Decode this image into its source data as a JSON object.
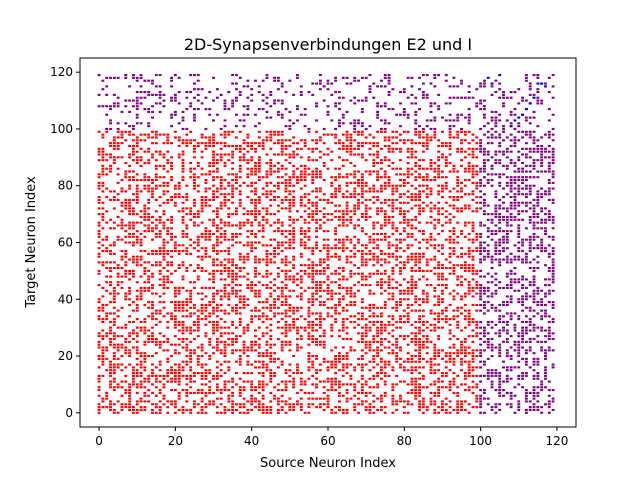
{
  "chart_data": {
    "type": "scatter",
    "title": "2D-Synapsenverbindungen E2 und I",
    "xlabel": "Source Neuron Index",
    "ylabel": "Target Neuron Index",
    "xlim": [
      -5,
      125
    ],
    "ylim": [
      -5,
      125
    ],
    "xticks": [
      0,
      20,
      40,
      60,
      80,
      100,
      120
    ],
    "yticks": [
      0,
      20,
      40,
      60,
      80,
      100,
      120
    ],
    "grid": false,
    "legend": "none",
    "marker_size_units": 1,
    "series": [
      {
        "color": "#ff0000",
        "region": {
          "x": [
            0,
            99
          ],
          "y": [
            0,
            99
          ]
        },
        "density": 0.45,
        "seed": 11
      },
      {
        "color": "#800080",
        "region": {
          "x": [
            0,
            119
          ],
          "y": [
            100,
            119
          ]
        },
        "density": 0.22,
        "seed": 23
      },
      {
        "color": "#800080",
        "region": {
          "x": [
            100,
            119
          ],
          "y": [
            0,
            99
          ]
        },
        "density": 0.45,
        "seed": 37
      },
      {
        "color": "#0000ff",
        "points": [
          [
            102,
            118
          ],
          [
            103,
            116
          ],
          [
            105,
            119
          ],
          [
            108,
            101
          ],
          [
            109,
            103
          ],
          [
            110,
            104
          ],
          [
            111,
            105
          ],
          [
            112,
            107
          ],
          [
            113,
            109
          ],
          [
            114,
            111
          ],
          [
            115,
            116
          ],
          [
            116,
            116
          ],
          [
            117,
            115
          ]
        ]
      }
    ]
  }
}
